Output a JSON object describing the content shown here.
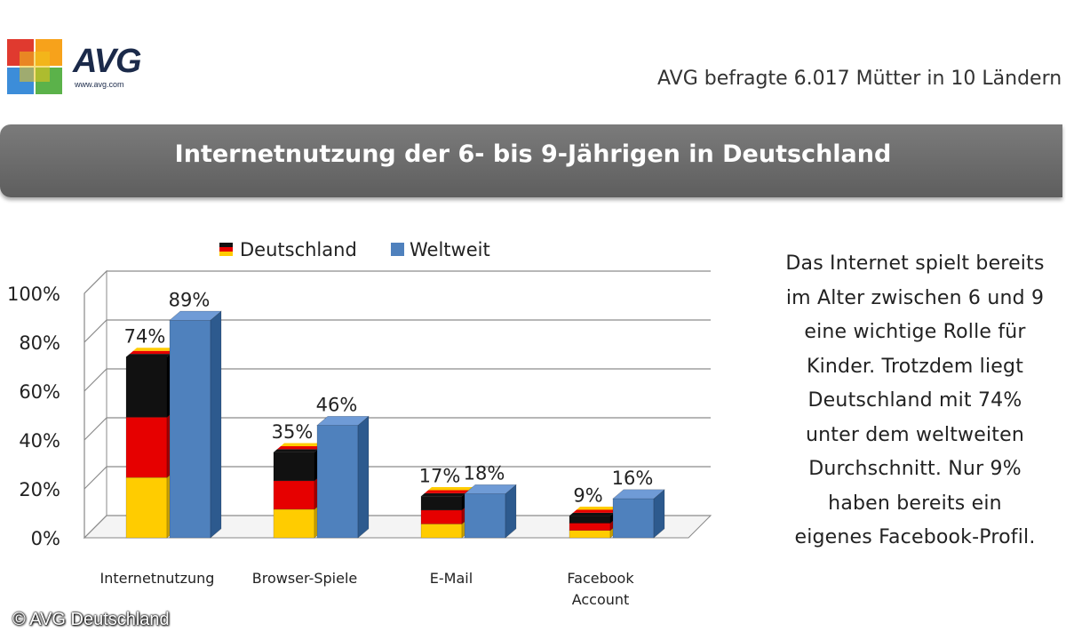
{
  "header": {
    "logo_text": "AVG",
    "logo_url": "www.avg.com",
    "survey_note": "AVG befragte 6.017 Mütter in 10 Ländern"
  },
  "banner": {
    "title": "Internetnutzung der 6- bis 9-Jährigen in Deutschland"
  },
  "chart_data": {
    "type": "bar",
    "title": "Internetnutzung der 6- bis 9-Jährigen in Deutschland",
    "categories": [
      "Internetnutzung",
      "Browser-Spiele",
      "E-Mail",
      "Facebook Account"
    ],
    "series": [
      {
        "name": "Deutschland",
        "values": [
          74,
          35,
          17,
          9
        ],
        "labels": [
          "74%",
          "35%",
          "17%",
          "9%"
        ]
      },
      {
        "name": "Weltweit",
        "values": [
          89,
          46,
          18,
          16
        ],
        "labels": [
          "89%",
          "46%",
          "18%",
          "16%"
        ]
      }
    ],
    "yticks": [
      "0%",
      "20%",
      "40%",
      "60%",
      "80%",
      "100%"
    ],
    "ylim": [
      0,
      100
    ],
    "legend": "top",
    "colors": {
      "weltweit": "#4f81bd",
      "weltweit_side": "#2d5a8e",
      "weltweit_top": "#6f9bd6",
      "de_gold": "#ffcc00",
      "de_red": "#e60000",
      "de_black": "#111111"
    }
  },
  "side_text": "Das Internet spielt bereits\nim Alter zwischen 6 und 9\neine wichtige Rolle für\nKinder. Trotzdem liegt\nDeutschland mit 74%\nunter dem weltweiten\nDurchschnitt. Nur 9%\nhaben bereits ein\neigenes Facebook-Profil.",
  "copyright": "© AVG Deutschland"
}
